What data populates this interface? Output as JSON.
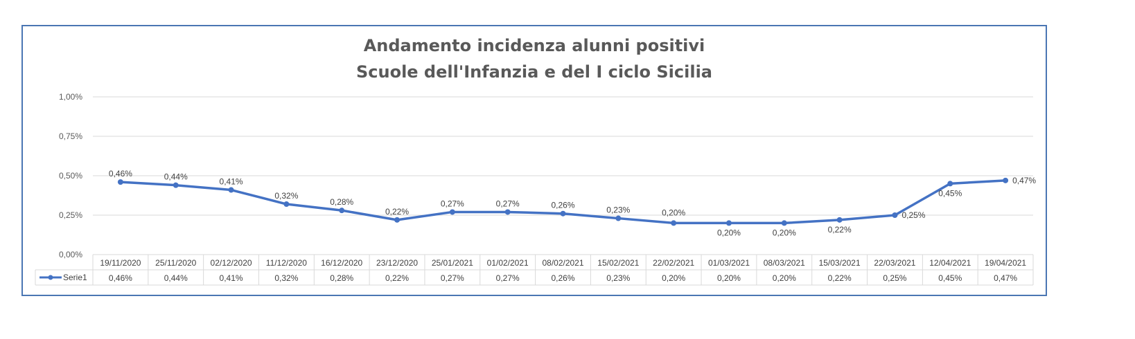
{
  "chart_data": {
    "type": "line",
    "title": [
      "Andamento incidenza alunni positivi",
      "Scuole dell'Infanzia e del I ciclo Sicilia"
    ],
    "ylim": [
      0,
      1
    ],
    "yticks": [
      0,
      0.25,
      0.5,
      0.75,
      1
    ],
    "ytick_labels": [
      "0,00%",
      "0,25%",
      "0,50%",
      "0,75%",
      "1,00%"
    ],
    "categories": [
      "19/11/2020",
      "25/11/2020",
      "02/12/2020",
      "11/12/2020",
      "16/12/2020",
      "23/12/2020",
      "25/01/2021",
      "01/02/2021",
      "08/02/2021",
      "15/02/2021",
      "22/02/2021",
      "01/03/2021",
      "08/03/2021",
      "15/03/2021",
      "22/03/2021",
      "12/04/2021",
      "19/04/2021"
    ],
    "series": [
      {
        "name": "Serie1",
        "values": [
          0.46,
          0.44,
          0.41,
          0.32,
          0.28,
          0.22,
          0.27,
          0.27,
          0.26,
          0.23,
          0.2,
          0.2,
          0.2,
          0.22,
          0.25,
          0.45,
          0.47
        ],
        "labels": [
          "0,46%",
          "0,44%",
          "0,41%",
          "0,32%",
          "0,28%",
          "0,22%",
          "0,27%",
          "0,27%",
          "0,26%",
          "0,23%",
          "0,20%",
          "0,20%",
          "0,20%",
          "0,22%",
          "0,25%",
          "0,45%",
          "0,47%"
        ],
        "color": "#4472c4"
      }
    ],
    "grid": true,
    "legend": "data-table"
  }
}
